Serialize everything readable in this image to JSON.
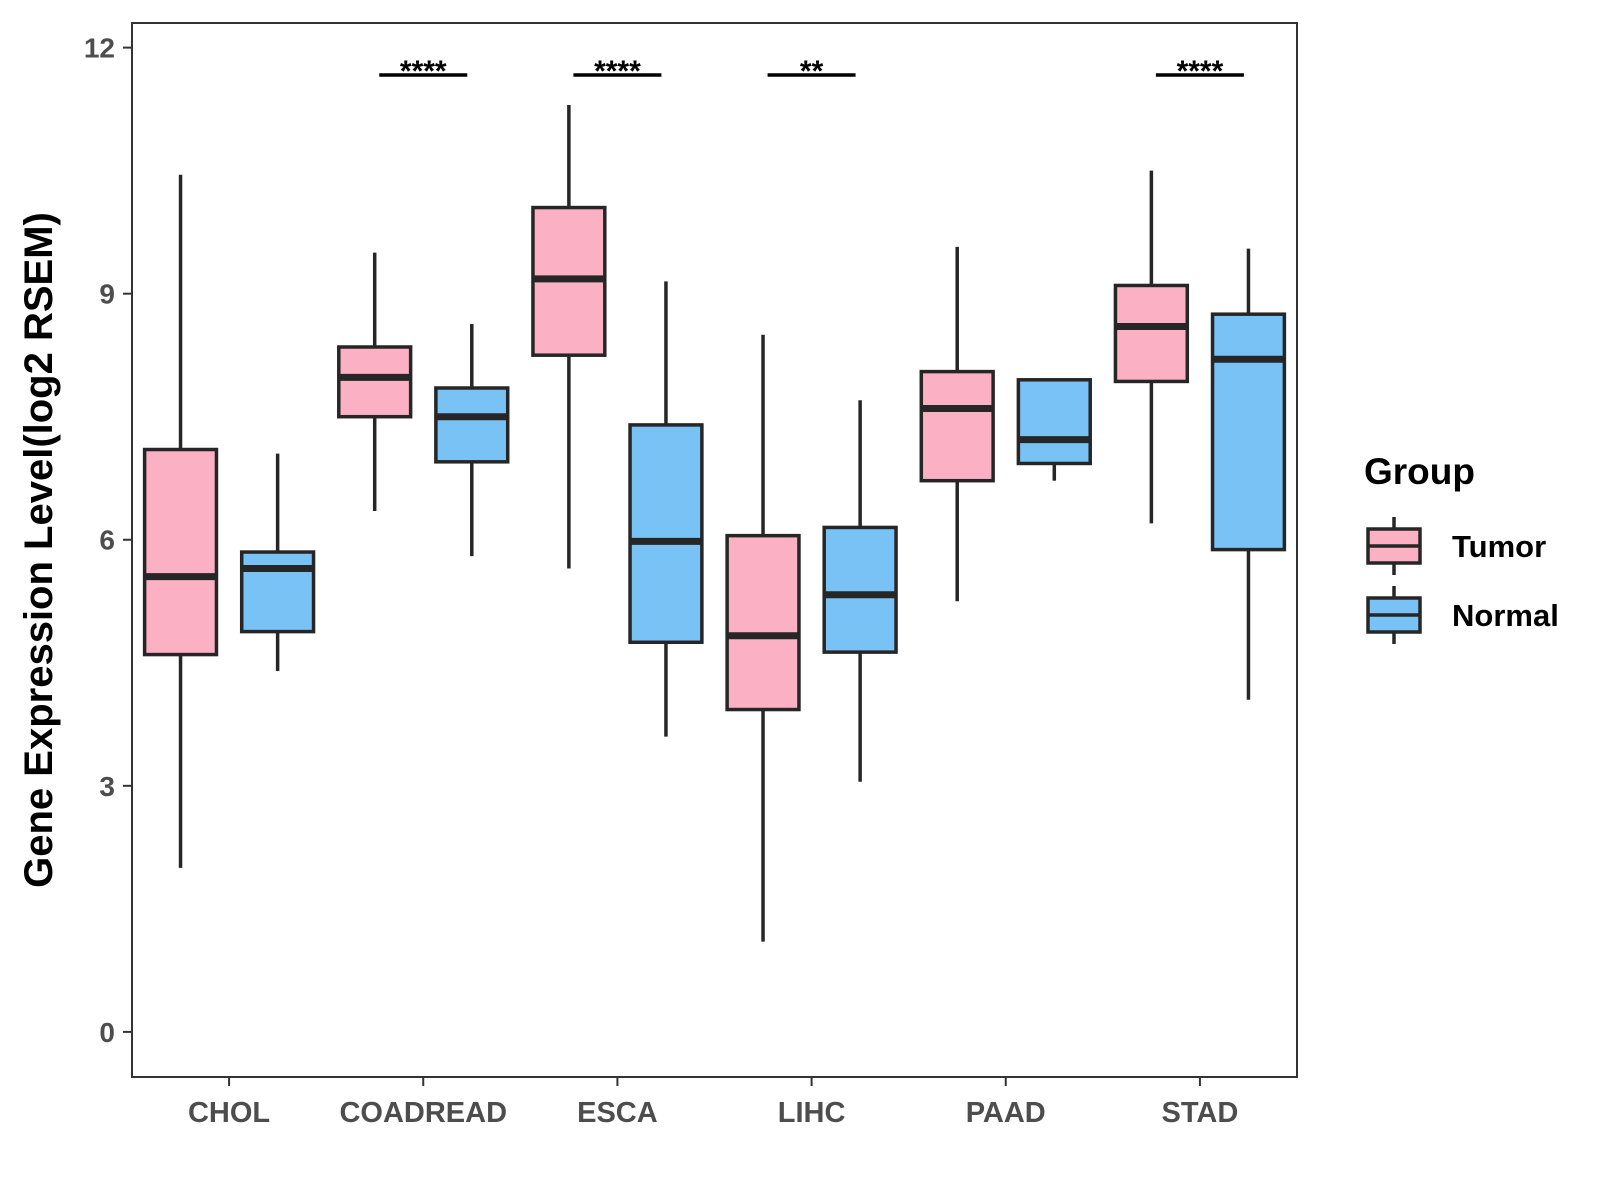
{
  "chart_data": {
    "type": "box",
    "title": "",
    "xlabel": "",
    "ylabel": "Gene Expression Level(log2 RSEM)",
    "ylim": [
      -0.55,
      12.3
    ],
    "yticks": [
      0,
      3,
      6,
      9,
      12
    ],
    "categories": [
      "CHOL",
      "COADREAD",
      "ESCA",
      "LIHC",
      "PAAD",
      "STAD"
    ],
    "legend": {
      "title": "Group",
      "position": "right",
      "entries": [
        {
          "name": "Tumor",
          "color": "#FBB0C3"
        },
        {
          "name": "Normal",
          "color": "#79C2F6"
        }
      ]
    },
    "series": [
      {
        "name": "Tumor",
        "color": "#FBB0C3",
        "boxes": [
          {
            "min": 2.0,
            "q1": 4.6,
            "median": 5.55,
            "q3": 7.1,
            "max": 10.45
          },
          {
            "min": 6.35,
            "q1": 7.5,
            "median": 7.98,
            "q3": 8.35,
            "max": 9.5
          },
          {
            "min": 5.65,
            "q1": 8.25,
            "median": 9.18,
            "q3": 10.05,
            "max": 11.3
          },
          {
            "min": 1.1,
            "q1": 3.93,
            "median": 4.83,
            "q3": 6.05,
            "max": 8.5
          },
          {
            "min": 5.25,
            "q1": 6.72,
            "median": 7.6,
            "q3": 8.05,
            "max": 9.57
          },
          {
            "min": 6.2,
            "q1": 7.93,
            "median": 8.6,
            "q3": 9.1,
            "max": 10.5
          }
        ]
      },
      {
        "name": "Normal",
        "color": "#79C2F6",
        "boxes": [
          {
            "min": 4.4,
            "q1": 4.88,
            "median": 5.65,
            "q3": 5.85,
            "max": 7.05
          },
          {
            "min": 5.8,
            "q1": 6.95,
            "median": 7.5,
            "q3": 7.85,
            "max": 8.63
          },
          {
            "min": 3.6,
            "q1": 4.75,
            "median": 5.98,
            "q3": 7.4,
            "max": 9.15
          },
          {
            "min": 3.05,
            "q1": 4.63,
            "median": 5.33,
            "q3": 6.15,
            "max": 7.7
          },
          {
            "min": 6.72,
            "q1": 6.93,
            "median": 7.22,
            "q3": 7.95,
            "max": 7.95
          },
          {
            "min": 4.05,
            "q1": 5.88,
            "median": 8.2,
            "q3": 8.75,
            "max": 9.55
          }
        ]
      }
    ],
    "significance": [
      {
        "category": "COADREAD",
        "label": "****"
      },
      {
        "category": "ESCA",
        "label": "****"
      },
      {
        "category": "LIHC",
        "label": "**"
      },
      {
        "category": "STAD",
        "label": "****"
      }
    ]
  }
}
